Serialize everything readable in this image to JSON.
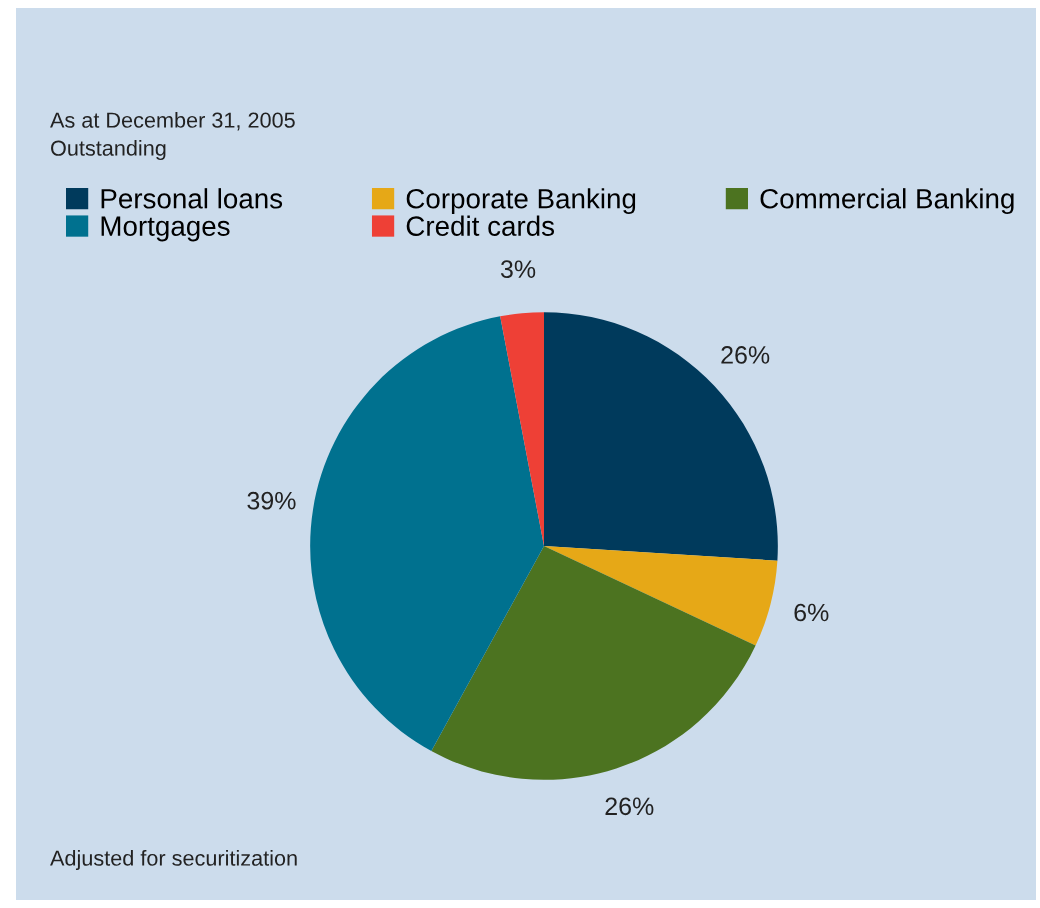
{
  "chart_data": {
    "type": "pie",
    "title": "As at December 31, 2005",
    "subtitle": "Outstanding",
    "categories": [
      "Personal loans",
      "Corporate Banking",
      "Commercial Banking",
      "Mortgages",
      "Credit cards"
    ],
    "values": [
      26,
      6,
      26,
      39,
      3
    ],
    "colors": [
      "#003a5c",
      "#e6a817",
      "#4c7320",
      "#00718f",
      "#ee4036"
    ],
    "value_labels": [
      "26%",
      "6%",
      "26%",
      "39%",
      "3%"
    ],
    "legend": "top",
    "annotations": [
      "Adjusted for securitization"
    ]
  }
}
